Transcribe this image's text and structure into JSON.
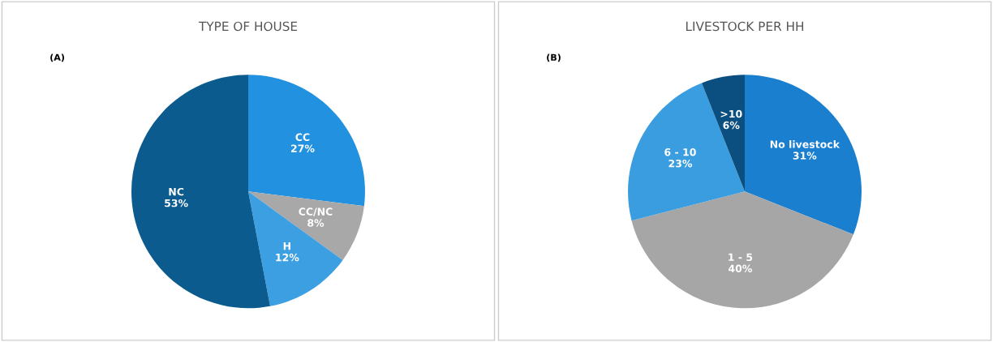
{
  "chart_data": [
    {
      "type": "pie",
      "title": "TYPE OF HOUSE",
      "annotations": [
        "(A)"
      ],
      "categories": [
        "CC",
        "CC/NC",
        "H",
        "NC"
      ],
      "values": [
        27,
        8,
        12,
        53
      ],
      "value_labels": [
        "27%",
        "8%",
        "12%",
        "53%"
      ],
      "colors": [
        "#2191e0",
        "#a8a8a8",
        "#3b9fe2",
        "#0c5b8f"
      ]
    },
    {
      "type": "pie",
      "title": "LIVESTOCK PER HH",
      "annotations": [
        "(B)"
      ],
      "categories": [
        "No livestock",
        "1 - 5",
        "6 - 10",
        ">10"
      ],
      "values": [
        31,
        40,
        23,
        6
      ],
      "value_labels": [
        "31%",
        "40%",
        "23%",
        "6%"
      ],
      "colors": [
        "#1b7fcf",
        "#a6a6a6",
        "#3a9de0",
        "#0b4f80"
      ]
    }
  ]
}
